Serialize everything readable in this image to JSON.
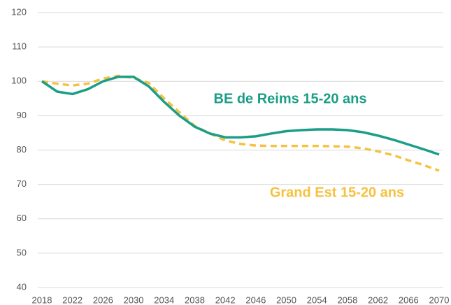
{
  "chart_data": {
    "type": "line",
    "x": [
      2018,
      2020,
      2022,
      2024,
      2026,
      2028,
      2030,
      2032,
      2034,
      2036,
      2038,
      2040,
      2042,
      2044,
      2046,
      2048,
      2050,
      2052,
      2054,
      2056,
      2058,
      2060,
      2062,
      2064,
      2066,
      2068,
      2070
    ],
    "series": [
      {
        "name": "BE de Reims 15-20 ans",
        "color": "#1a9e85",
        "dashed": false,
        "values": [
          100,
          97,
          96.3,
          97.7,
          100,
          101.3,
          101.3,
          98.5,
          94,
          90,
          86.8,
          84.8,
          83.7,
          83.7,
          84,
          84.8,
          85.5,
          85.8,
          86,
          86,
          85.8,
          85.2,
          84.2,
          83,
          81.6,
          80.2,
          78.7
        ]
      },
      {
        "name": "Grand Est 15-20 ans",
        "color": "#f5c242",
        "dashed": true,
        "values": [
          100,
          99.3,
          98.8,
          99.3,
          100.8,
          101.6,
          101,
          99.5,
          95,
          91,
          87,
          84.8,
          82.8,
          81.8,
          81.3,
          81.2,
          81.2,
          81.2,
          81.2,
          81.1,
          81,
          80.5,
          79.6,
          78.5,
          77,
          75.6,
          74
        ]
      }
    ],
    "xlim": [
      2018,
      2070
    ],
    "xticks": [
      2018,
      2022,
      2026,
      2030,
      2034,
      2038,
      2042,
      2046,
      2050,
      2054,
      2058,
      2062,
      2066,
      2070
    ],
    "ylim": [
      40,
      120
    ],
    "yticks": [
      40,
      50,
      60,
      70,
      80,
      90,
      100,
      110,
      120
    ],
    "grid": true
  }
}
